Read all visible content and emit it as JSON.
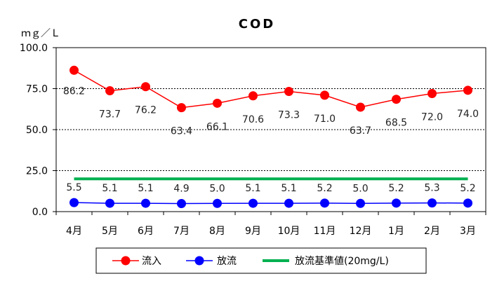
{
  "chart_data": {
    "type": "line",
    "title": "COD",
    "ylabel": "ｍｇ／Ｌ",
    "xlabel": "",
    "categories": [
      "4月",
      "5月",
      "6月",
      "7月",
      "8月",
      "9月",
      "10月",
      "11月",
      "12月",
      "1月",
      "2月",
      "3月"
    ],
    "ylim": [
      0,
      100
    ],
    "yticks": [
      "0.0",
      "25.0",
      "50.0",
      "75.0",
      "100.0"
    ],
    "grid": "horizontal-dashed",
    "legend_position": "bottom",
    "series": [
      {
        "name": "流入",
        "color": "#ff0000",
        "marker": "circle",
        "values": [
          86.2,
          73.7,
          76.2,
          63.4,
          66.1,
          70.6,
          73.3,
          71.0,
          63.7,
          68.5,
          72.0,
          74.0
        ],
        "labels": [
          "86.2",
          "73.7",
          "76.2",
          "63.4",
          "66.1",
          "70.6",
          "73.3",
          "71.0",
          "63.7",
          "68.5",
          "72.0",
          "74.0"
        ]
      },
      {
        "name": "放流",
        "color": "#0000ff",
        "marker": "circle",
        "values": [
          5.5,
          5.1,
          5.1,
          4.9,
          5.0,
          5.1,
          5.1,
          5.2,
          5.0,
          5.2,
          5.3,
          5.2
        ],
        "labels": [
          "5.5",
          "5.1",
          "5.1",
          "4.9",
          "5.0",
          "5.1",
          "5.1",
          "5.2",
          "5.0",
          "5.2",
          "5.3",
          "5.2"
        ]
      },
      {
        "name": "放流基準値(20mg/L)",
        "color": "#00b050",
        "marker": "none",
        "values": [
          20,
          20,
          20,
          20,
          20,
          20,
          20,
          20,
          20,
          20,
          20,
          20
        ]
      }
    ]
  }
}
